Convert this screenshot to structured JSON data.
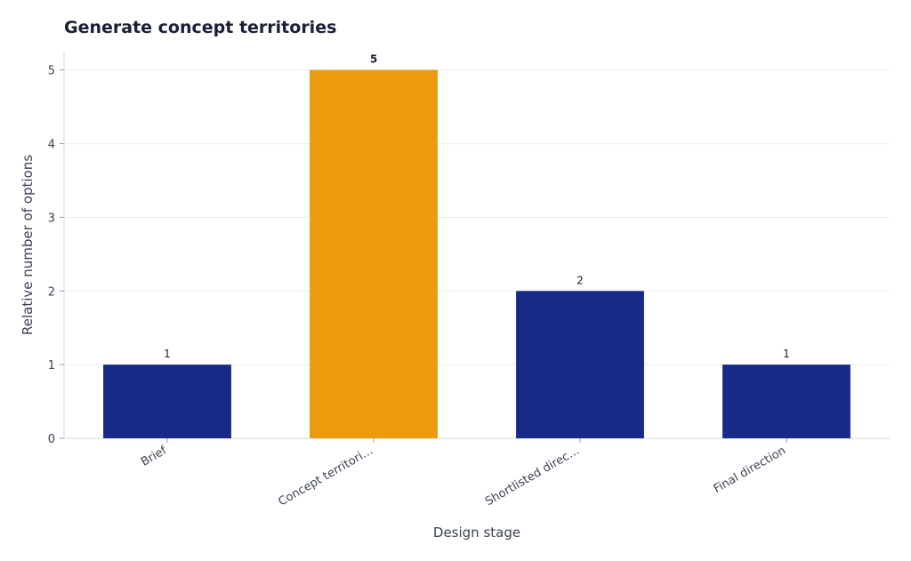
{
  "chart_data": {
    "type": "bar",
    "title": "Generate concept territories",
    "xlabel": "Design stage",
    "ylabel": "Relative number of options",
    "categories": [
      "Brief",
      "Concept territori…",
      "Shortlisted direc…",
      "Final direction"
    ],
    "values": [
      1,
      5,
      2,
      1
    ],
    "highlight_index": 1,
    "ylim": [
      0,
      5.25
    ],
    "yticks": [
      0,
      1,
      2,
      3,
      4,
      5
    ],
    "grid": true,
    "legend": "none",
    "colors": {
      "bar": "#172a87",
      "highlight": "#eb9b0c",
      "grid": "#e9ebef",
      "axis": "#d6d9de"
    }
  }
}
